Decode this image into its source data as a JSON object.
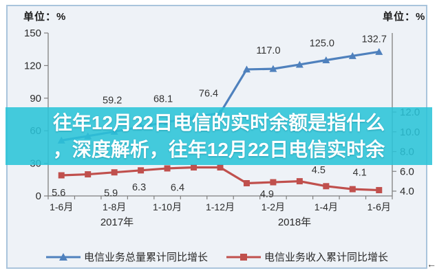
{
  "overlay": {
    "line1": "往年12月22日电信的实时余额是指什么",
    "line2": "，深度解析，往年12月22日电信实时余"
  },
  "icons": {
    "resize_arrow": "←"
  },
  "colors": {
    "series_total": "#4F81BD",
    "series_revenue": "#C0504D",
    "overlay_band": "#29C3D8",
    "frame_border": "#A9C4DC",
    "chart_background": "#EEF2F7"
  },
  "chart_data": {
    "type": "line",
    "unit_left": "单位：%",
    "unit_right": "单位：%",
    "x_labels": [
      {
        "slot": 0,
        "text": "1-6月"
      },
      {
        "slot": 2,
        "text": "1-8月"
      },
      {
        "slot": 4,
        "text": "1-10月"
      },
      {
        "slot": 6,
        "text": "1-12月"
      },
      {
        "slot": 8,
        "text": "1-2月"
      },
      {
        "slot": 10,
        "text": "1-4月"
      },
      {
        "slot": 12,
        "text": "1-6月"
      }
    ],
    "year_labels": [
      "2017年",
      "2018年"
    ],
    "left_axis": {
      "min": 0,
      "max": 150,
      "ticks": [
        0,
        30,
        60,
        90,
        120,
        150
      ]
    },
    "right_axis": {
      "min": 4,
      "max": 12,
      "ticks": [
        4.0,
        6.0,
        8.0,
        10.0,
        12.0
      ]
    },
    "grid": false,
    "legend_position": "bottom",
    "series": [
      {
        "name": "电信业务总量累计同比增长",
        "axis": "left",
        "marker": "triangle",
        "color": "#4F81BD",
        "values": [
          51.1,
          55.1,
          59.2,
          63.6,
          68.1,
          72.2,
          76.4,
          116.5,
          117.0,
          120.9,
          125.0,
          128.9,
          132.7
        ],
        "point_labels": {
          "2": "59.2",
          "4": "68.1",
          "6": "76.4",
          "8": "117.0",
          "10": "125.0",
          "12": "132.7"
        }
      },
      {
        "name": "电信业务收入累计同比增长",
        "axis": "right",
        "marker": "square",
        "color": "#C0504D",
        "values": [
          5.6,
          5.7,
          5.9,
          6.1,
          6.3,
          6.4,
          6.4,
          4.8,
          4.9,
          5.0,
          4.5,
          4.2,
          4.1
        ],
        "point_labels": {
          "0": "5.6",
          "2": "5.9",
          "4": "6.3",
          "6": "6.4",
          "8": "4.9",
          "10": "4.5",
          "12": "4.1"
        }
      }
    ]
  }
}
